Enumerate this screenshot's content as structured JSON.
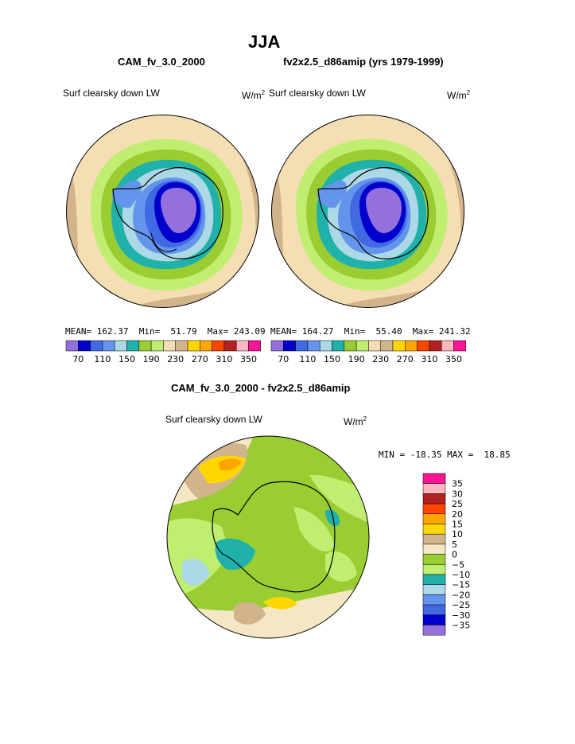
{
  "page": {
    "title": "JJA",
    "left_case": "CAM_fv_3.0_2000",
    "right_case": "fv2x2.5_d86amip (yrs 1979-1999)",
    "diff_title": "CAM_fv_3.0_2000 - fv2x2.5_d86amip"
  },
  "panels": {
    "left": {
      "variable": "Surf clearsky down LW",
      "units_base": "W/m",
      "units_exp": "2",
      "stats": "MEAN= 162.37  Min=  51.79  Max= 243.09"
    },
    "right": {
      "variable": "Surf clearsky down LW",
      "units_base": "W/m",
      "units_exp": "2",
      "stats": "MEAN= 164.27  Min=  55.40  Max= 241.32"
    },
    "diff": {
      "variable": "Surf clearsky down LW",
      "units_base": "W/m",
      "units_exp": "2",
      "stats": "MIN = -18.35 MAX =  18.85"
    }
  },
  "colorbar_top": {
    "colors": [
      "#9370db",
      "#0000cd",
      "#4169e1",
      "#6495ed",
      "#add8e6",
      "#20b2aa",
      "#9acd32",
      "#c0ee70",
      "#f5deb3",
      "#d2b48c",
      "#ffd700",
      "#ffa500",
      "#ff4500",
      "#b22222",
      "#ffb6c1",
      "#ff1493"
    ],
    "labels": [
      "70",
      "110",
      "150",
      "190",
      "230",
      "270",
      "310",
      "350"
    ]
  },
  "colorbar_diff": {
    "colors": [
      "#ff1493",
      "#ffb6c1",
      "#b22222",
      "#ff4500",
      "#ffa500",
      "#ffd700",
      "#d2b48c",
      "#f5e6c4",
      "#9acd32",
      "#c0ee70",
      "#20b2aa",
      "#add8e6",
      "#6495ed",
      "#4169e1",
      "#0000cd",
      "#9370db"
    ],
    "labels": [
      "35",
      "30",
      "25",
      "20",
      "15",
      "10",
      "5",
      "0",
      "−5",
      "−10",
      "−15",
      "−20",
      "−25",
      "−30",
      "−35"
    ]
  }
}
